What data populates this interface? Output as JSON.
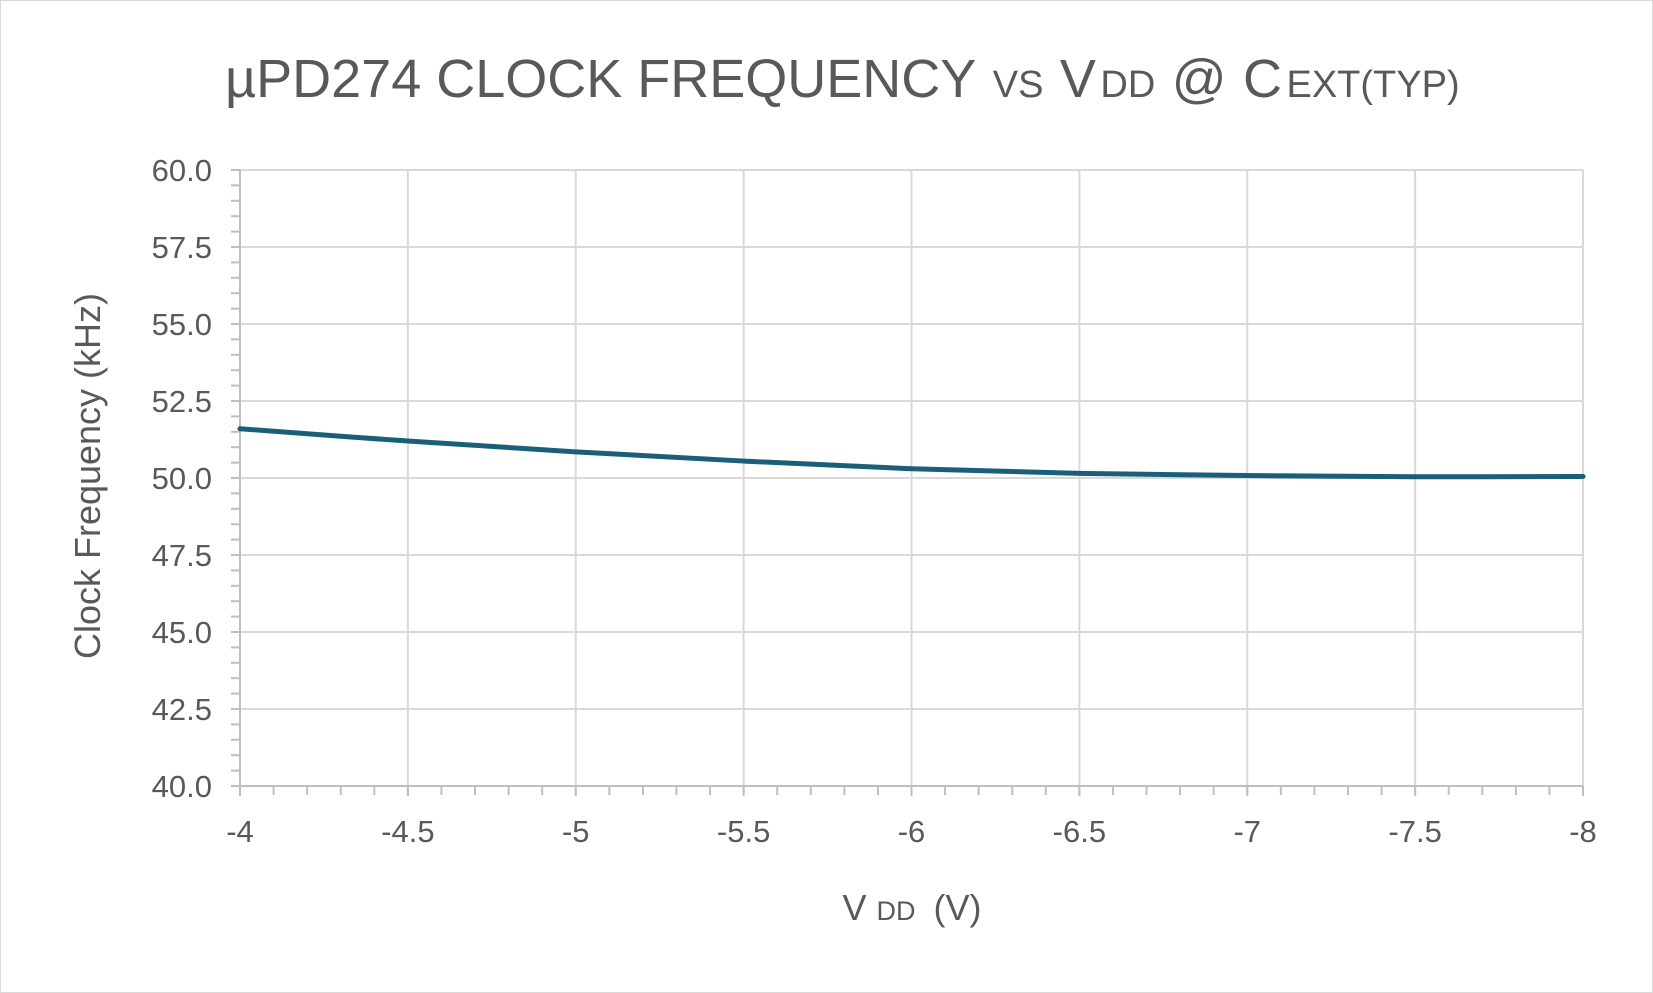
{
  "chart_data": {
    "type": "line",
    "title": {
      "prefix": "µPD274 CLOCK FREQUENCY",
      "vs": "VS",
      "v": "V",
      "dd": "DD",
      "at": "@",
      "c": "C",
      "ext": "EXT(TYP)"
    },
    "xlabel": {
      "v": "V",
      "dd": "DD",
      "unit": "(V)"
    },
    "ylabel": "Clock Frequency (kHz)",
    "xlim": [
      -4,
      -8
    ],
    "ylim": [
      40,
      60
    ],
    "x_ticks": [
      -4,
      -4.5,
      -5,
      -5.5,
      -6,
      -6.5,
      -7,
      -7.5,
      -8
    ],
    "x_tick_labels": [
      "-4",
      "-4.5",
      "-5",
      "-5.5",
      "-6",
      "-6.5",
      "-7",
      "-7.5",
      "-8"
    ],
    "y_ticks": [
      40,
      42.5,
      45,
      47.5,
      50,
      52.5,
      55,
      57.5,
      60
    ],
    "y_tick_labels": [
      "40.0",
      "42.5",
      "45.0",
      "47.5",
      "50.0",
      "52.5",
      "55.0",
      "57.5",
      "60.0"
    ],
    "grid": true,
    "legend": "none",
    "series": [
      {
        "color": "#1a5f7a",
        "x": [
          -4,
          -4.5,
          -5,
          -5.5,
          -6,
          -6.5,
          -7,
          -7.5,
          -8
        ],
        "y": [
          51.6,
          51.2,
          50.85,
          50.55,
          50.3,
          50.15,
          50.08,
          50.04,
          50.05
        ]
      }
    ]
  }
}
